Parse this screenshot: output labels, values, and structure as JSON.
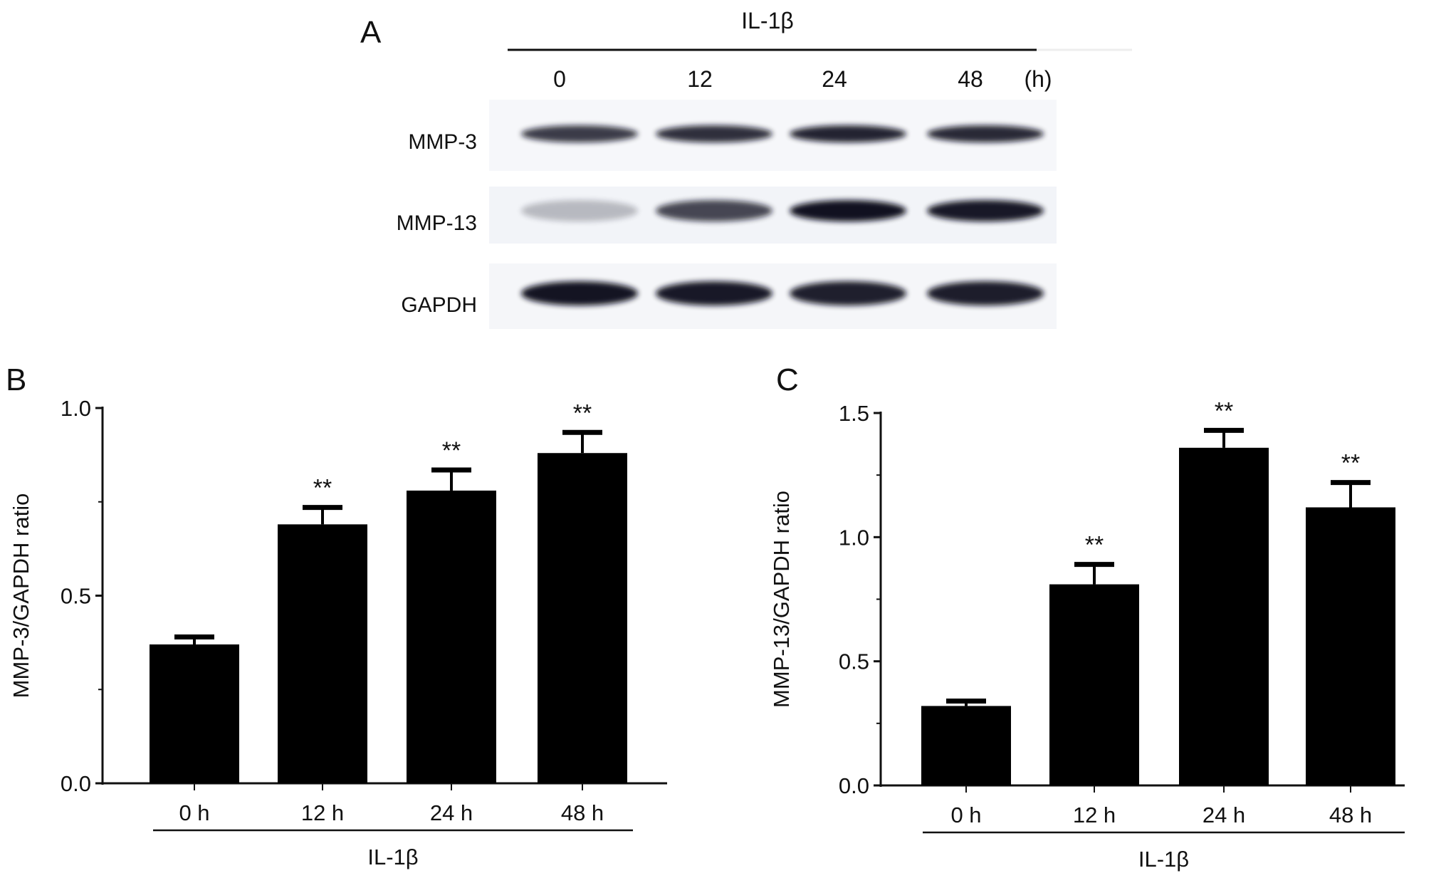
{
  "panel_a": {
    "letter": "A",
    "treatment": "IL-1β",
    "lanes": [
      "0",
      "12",
      "24",
      "48"
    ],
    "unit": "(h)",
    "rows": [
      "MMP-3",
      "MMP-13",
      "GAPDH"
    ]
  },
  "chart_data": [
    {
      "type": "bar",
      "panel": "B",
      "categories": [
        "0 h",
        "12 h",
        "24 h",
        "48 h"
      ],
      "values": [
        0.37,
        0.69,
        0.78,
        0.88
      ],
      "error": [
        0.02,
        0.045,
        0.055,
        0.055
      ],
      "significance": [
        "",
        "**",
        "**",
        "**"
      ],
      "xlabel": "IL-1β",
      "ylabel": "MMP-3/GAPDH ratio",
      "ylim": [
        0,
        1.0
      ],
      "yticks": [
        "0.0",
        "0.5",
        "1.0"
      ],
      "bar_color": "#000000"
    },
    {
      "type": "bar",
      "panel": "C",
      "categories": [
        "0 h",
        "12 h",
        "24 h",
        "48 h"
      ],
      "values": [
        0.32,
        0.81,
        1.36,
        1.12
      ],
      "error": [
        0.02,
        0.08,
        0.07,
        0.1
      ],
      "significance": [
        "",
        "**",
        "**",
        "**"
      ],
      "xlabel": "IL-1β",
      "ylabel": "MMP-13/GAPDH ratio",
      "ylim": [
        0,
        1.5
      ],
      "yticks": [
        "0.0",
        "0.5",
        "1.0",
        "1.5"
      ],
      "bar_color": "#000000"
    }
  ]
}
